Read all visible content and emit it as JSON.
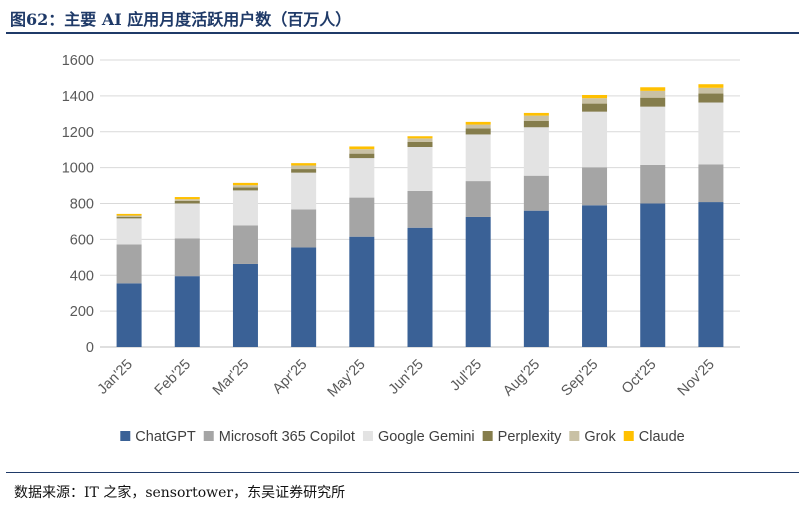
{
  "page": {
    "title": "图62：主要 AI 应用月度活跃用户数（百万人）",
    "source": "数据来源：IT 之家，sensortower，东吴证券研究所"
  },
  "chart_data": {
    "type": "bar",
    "stacked": true,
    "title": "主要 AI 应用月度活跃用户数（百万人）",
    "xlabel": "",
    "ylabel": "",
    "ylim": [
      0,
      1600
    ],
    "yticks": [
      0,
      200,
      400,
      600,
      800,
      1000,
      1200,
      1400,
      1600
    ],
    "grid": true,
    "legend_position": "bottom",
    "categories": [
      "Jan'25",
      "Feb'25",
      "Mar'25",
      "Apr'25",
      "May'25",
      "Jun'25",
      "Jul'25",
      "Aug'25",
      "Sep'25",
      "Oct'25",
      "Nov'25"
    ],
    "series": [
      {
        "name": "ChatGPT",
        "color": "#3a6196",
        "values": [
          355,
          395,
          463,
          555,
          615,
          665,
          725,
          760,
          790,
          800,
          808
        ]
      },
      {
        "name": "Microsoft 365 Copilot",
        "color": "#a5a5a5",
        "values": [
          217,
          210,
          215,
          212,
          218,
          205,
          200,
          195,
          212,
          215,
          210
        ]
      },
      {
        "name": "Google Gemini",
        "color": "#e3e3e3",
        "values": [
          145,
          195,
          195,
          205,
          220,
          245,
          260,
          270,
          310,
          325,
          345
        ]
      },
      {
        "name": "Perplexity",
        "color": "#857d4c",
        "values": [
          8,
          14,
          16,
          20,
          25,
          28,
          33,
          35,
          45,
          50,
          50
        ]
      },
      {
        "name": "Grok",
        "color": "#c9c1a5",
        "values": [
          8,
          10,
          13,
          20,
          25,
          20,
          22,
          30,
          30,
          38,
          32
        ]
      },
      {
        "name": "Claude",
        "color": "#ffc000",
        "values": [
          9,
          12,
          13,
          13,
          15,
          12,
          15,
          15,
          18,
          20,
          20
        ]
      }
    ]
  }
}
